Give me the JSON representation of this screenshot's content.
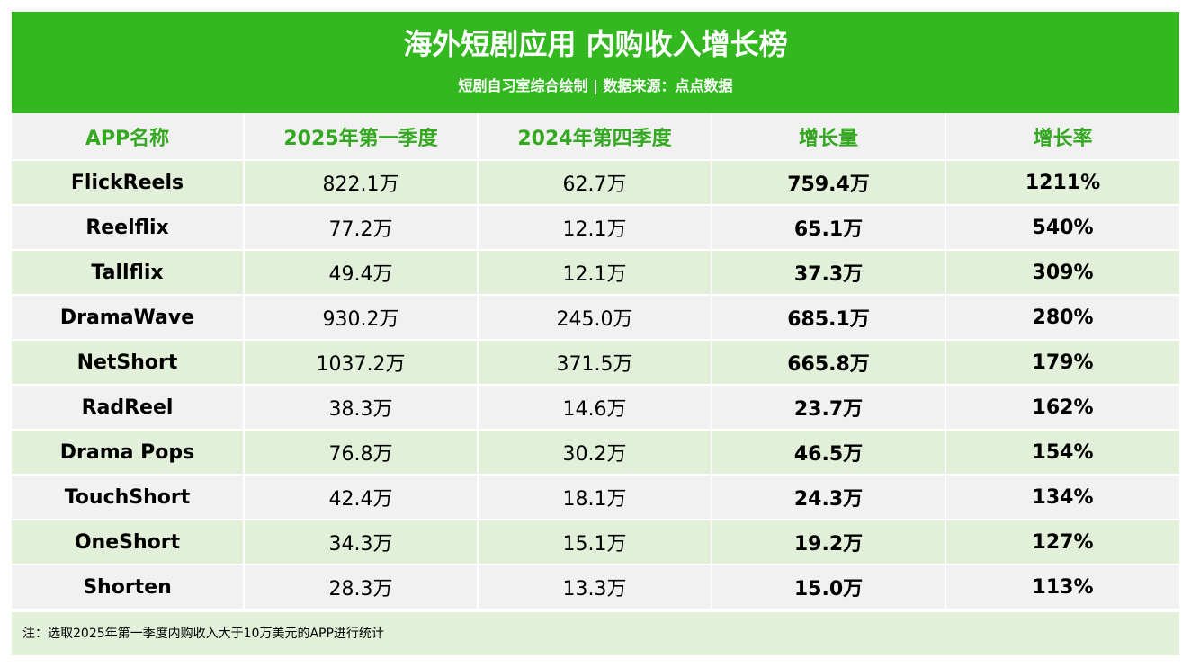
{
  "header": {
    "title": "海外短剧应用 内购收入增长榜",
    "subtitle": "短剧自习室综合绘制 | 数据来源：点点数据"
  },
  "table": {
    "columns": [
      "APP名称",
      "2025年第一季度",
      "2024年第四季度",
      "增长量",
      "增长率"
    ],
    "rows": [
      {
        "app": "FlickReels",
        "q1_2025": "822.1万",
        "q4_2024": "62.7万",
        "growth": "759.4万",
        "rate": "1211%"
      },
      {
        "app": "Reelflix",
        "q1_2025": "77.2万",
        "q4_2024": "12.1万",
        "growth": "65.1万",
        "rate": "540%"
      },
      {
        "app": "Tallflix",
        "q1_2025": "49.4万",
        "q4_2024": "12.1万",
        "growth": "37.3万",
        "rate": "309%"
      },
      {
        "app": "DramaWave",
        "q1_2025": "930.2万",
        "q4_2024": "245.0万",
        "growth": "685.1万",
        "rate": "280%"
      },
      {
        "app": "NetShort",
        "q1_2025": "1037.2万",
        "q4_2024": "371.5万",
        "growth": "665.8万",
        "rate": "179%"
      },
      {
        "app": "RadReel",
        "q1_2025": "38.3万",
        "q4_2024": "14.6万",
        "growth": "23.7万",
        "rate": "162%"
      },
      {
        "app": "Drama Pops",
        "q1_2025": "76.8万",
        "q4_2024": "30.2万",
        "growth": "46.5万",
        "rate": "154%"
      },
      {
        "app": "TouchShort",
        "q1_2025": "42.4万",
        "q4_2024": "18.1万",
        "growth": "24.3万",
        "rate": "134%"
      },
      {
        "app": "OneShort",
        "q1_2025": "34.3万",
        "q4_2024": "15.1万",
        "growth": "19.2万",
        "rate": "127%"
      },
      {
        "app": "Shorten",
        "q1_2025": "28.3万",
        "q4_2024": "13.3万",
        "growth": "15.0万",
        "rate": "113%"
      }
    ]
  },
  "footer": {
    "note": "注：选取2025年第一季度内购收入大于10万美元的APP进行统计"
  },
  "colors": {
    "header_bg": "#33b820",
    "header_text": "#ffffff",
    "column_header_text": "#33a820",
    "row_green": "#e2efd9",
    "row_gray": "#f1f1f1"
  }
}
